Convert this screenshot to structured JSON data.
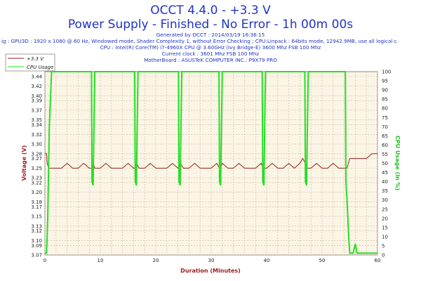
{
  "header": {
    "title": "OCCT 4.4.0 - +3.3 V",
    "subtitle": "Power Supply - Finished - No Error - 1h 00m 00s",
    "generated": "Generated by OCCT : 2014/03/19 16:36:15",
    "config": "ig : GPU3D : 1920 x 1080 @ 60 Hz, Windowed mode, Shader Complexity 1, without Error Checking ; CPU:Linpack : 64bits mode, 12942.9MB, use all logical c",
    "cpu": "CPU : Intel(R) Core(TM) i7-4960X CPU @ 3.60GHz (Ivy Bridge-E) 3600 Mhz FSB 100 Mhz",
    "clock": "Current clock : 3601 Mhz FSB 100 Mhz",
    "motherboard": "MotherBoard : ASUSTeK COMPUTER INC.: P9X79 PRO"
  },
  "colors": {
    "plot_background": "#fbf5e6",
    "grid": "#c8b89a",
    "voltage": "#9b1c1c",
    "cpu_usage": "#22e022",
    "axis_label_left": "#9b1c1c",
    "axis_label_right": "#22c022",
    "axis_label_bottom": "#9b1c1c",
    "title": "#1f33c4"
  },
  "chart_data": {
    "type": "line",
    "xlabel": "Duration (Minutes)",
    "ylabel": "Voltage (V)",
    "y2label": "CPU Usage (in %)",
    "xlim": [
      0,
      60
    ],
    "ylim": [
      3.07,
      3.45
    ],
    "y2lim": [
      0,
      100
    ],
    "x_ticks": [
      "0",
      "10",
      "20",
      "30",
      "40",
      "50",
      "60"
    ],
    "y_ticks": [
      "3.07",
      "3.09",
      "3.10",
      "3.12",
      "3.13",
      "3.15",
      "3.17",
      "3.18",
      "3.20",
      "3.22",
      "3.23",
      "3.25",
      "3.27",
      "3.28",
      "3.30",
      "3.32",
      "3.34",
      "3.35",
      "3.37",
      "3.39",
      "3.40",
      "3.42",
      "3.44"
    ],
    "y2_ticks": [
      "0",
      "5",
      "10",
      "15",
      "20",
      "25",
      "30",
      "35",
      "40",
      "45",
      "50",
      "55",
      "60",
      "65",
      "70",
      "75",
      "80",
      "85",
      "90",
      "95",
      "100"
    ],
    "grid": true,
    "legend_position": "top-left",
    "series": [
      {
        "name": "+3.3 V",
        "axis": "left",
        "x": [
          0,
          0.3,
          0.4,
          0.7,
          1,
          2,
          3,
          4,
          5,
          6,
          7,
          8,
          8.6,
          8.7,
          9,
          10,
          11,
          12,
          13,
          14,
          15,
          16,
          16.4,
          16.5,
          17,
          18,
          19,
          20,
          21,
          22,
          23,
          24,
          24.3,
          24.4,
          25,
          26,
          27,
          28,
          29,
          30,
          31,
          31.5,
          31.6,
          32,
          33,
          34,
          35,
          36,
          37,
          38,
          39,
          39.4,
          39.5,
          40,
          41,
          42,
          43,
          44,
          45,
          46,
          46.5,
          47,
          47.3,
          48,
          49,
          50,
          51,
          52,
          53,
          54,
          54.5,
          55,
          56,
          57,
          58,
          59,
          60
        ],
        "values": [
          3.28,
          3.28,
          3.26,
          3.25,
          3.25,
          3.25,
          3.25,
          3.26,
          3.25,
          3.25,
          3.26,
          3.25,
          3.25,
          3.26,
          3.25,
          3.25,
          3.26,
          3.25,
          3.25,
          3.25,
          3.26,
          3.25,
          3.25,
          3.26,
          3.25,
          3.25,
          3.26,
          3.25,
          3.25,
          3.25,
          3.26,
          3.25,
          3.25,
          3.26,
          3.25,
          3.25,
          3.26,
          3.25,
          3.25,
          3.25,
          3.26,
          3.25,
          3.25,
          3.26,
          3.25,
          3.25,
          3.26,
          3.25,
          3.25,
          3.25,
          3.26,
          3.25,
          3.25,
          3.25,
          3.26,
          3.25,
          3.25,
          3.26,
          3.25,
          3.26,
          3.27,
          3.26,
          3.25,
          3.25,
          3.26,
          3.25,
          3.25,
          3.26,
          3.25,
          3.25,
          3.25,
          3.27,
          3.27,
          3.27,
          3.27,
          3.28,
          3.28
        ]
      },
      {
        "name": "CPU Usage",
        "axis": "right",
        "x": [
          0,
          0.3,
          0.5,
          0.8,
          1.2,
          2,
          8.4,
          8.5,
          8.7,
          8.9,
          9,
          16.2,
          16.3,
          16.5,
          16.7,
          16.8,
          24.1,
          24.2,
          24.4,
          24.6,
          24.7,
          31.4,
          31.5,
          31.7,
          31.9,
          32,
          39.2,
          39.3,
          39.5,
          39.7,
          39.8,
          46.9,
          47,
          47.2,
          47.4,
          47.5,
          54.2,
          54.3,
          54.5,
          54.8,
          55,
          55.6,
          56,
          56.3,
          57,
          58,
          59,
          60
        ],
        "values": [
          1,
          1,
          20,
          70,
          100,
          100,
          100,
          40,
          38,
          80,
          100,
          100,
          40,
          38,
          80,
          100,
          100,
          40,
          38,
          80,
          100,
          100,
          40,
          38,
          80,
          100,
          100,
          40,
          38,
          80,
          100,
          100,
          40,
          38,
          80,
          100,
          100,
          40,
          30,
          10,
          1,
          1,
          6,
          1,
          1,
          1,
          1,
          1
        ]
      }
    ]
  }
}
